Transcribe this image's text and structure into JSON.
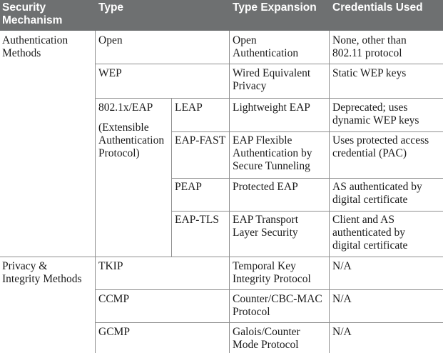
{
  "headers": {
    "mechanism": [
      "Security",
      "Mechanism"
    ],
    "type": "Type",
    "expansion": "Type Expansion",
    "credentials": "Credentials Used"
  },
  "groups": {
    "auth": [
      "Authentication",
      "Methods"
    ],
    "privacy": [
      "Privacy &",
      "Integrity Methods"
    ]
  },
  "rows": {
    "open": {
      "type": "Open",
      "expansion": [
        "Open",
        "Authentication"
      ],
      "credentials": [
        "None, other than",
        "802.11 protocol"
      ]
    },
    "wep": {
      "type": "WEP",
      "expansion": [
        "Wired Equivalent",
        "Privacy"
      ],
      "credentials": [
        "Static WEP keys"
      ]
    },
    "dot1x": {
      "type": "802.1x/EAP",
      "type_detail": [
        "(Extensible",
        "Authentication",
        "Protocol)"
      ]
    },
    "leap": {
      "subtype": "LEAP",
      "expansion": [
        "Lightweight EAP"
      ],
      "credentials": [
        "Deprecated; uses",
        "dynamic WEP keys"
      ]
    },
    "eapfast": {
      "subtype": "EAP-FAST",
      "expansion": [
        "EAP Flexible",
        "Authentication by",
        "Secure Tunneling"
      ],
      "credentials": [
        "Uses protected access",
        "credential (PAC)"
      ]
    },
    "peap": {
      "subtype": "PEAP",
      "expansion": [
        "Protected EAP"
      ],
      "credentials": [
        "AS authenticated by",
        "digital certificate"
      ]
    },
    "eaptls": {
      "subtype": "EAP-TLS",
      "expansion": [
        "EAP Transport",
        "Layer Security"
      ],
      "credentials": [
        "Client and AS",
        "authenticated by",
        "digital certificate"
      ]
    },
    "tkip": {
      "type": "TKIP",
      "expansion": [
        "Temporal Key",
        "Integrity Protocol"
      ],
      "credentials": [
        "N/A"
      ]
    },
    "ccmp": {
      "type": "CCMP",
      "expansion": [
        "Counter/CBC-MAC",
        "Protocol"
      ],
      "credentials": [
        "N/A"
      ]
    },
    "gcmp": {
      "type": "GCMP",
      "expansion": [
        "Galois/Counter",
        "Mode Protocol"
      ],
      "credentials": [
        "N/A"
      ]
    }
  }
}
